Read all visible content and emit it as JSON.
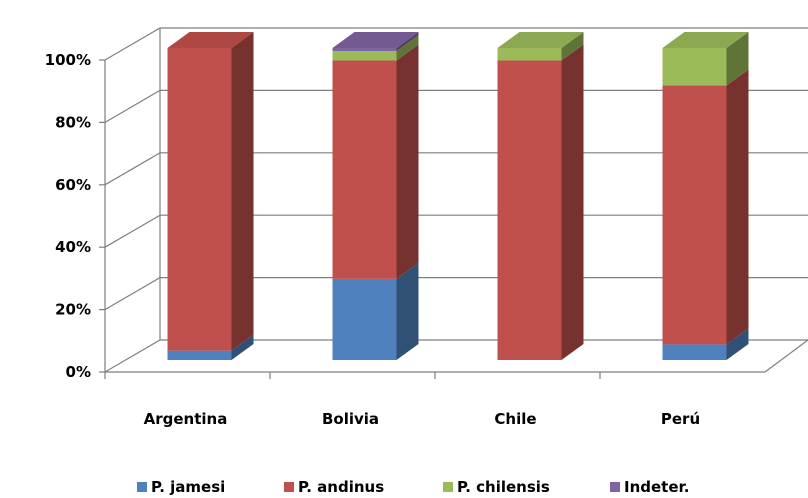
{
  "chart_data": {
    "type": "bar",
    "stacked": true,
    "three_d": true,
    "percent_stacked": true,
    "categories": [
      "Argentina",
      "Bolivia",
      "Chile",
      "Perú"
    ],
    "series": [
      {
        "name": "P. jamesi",
        "color": "#4f81bd",
        "values": [
          3,
          26,
          0,
          5
        ]
      },
      {
        "name": "P. andinus",
        "color": "#c0504d",
        "values": [
          97,
          70,
          96,
          83
        ]
      },
      {
        "name": "P. chilensis",
        "color": "#9bbb59",
        "values": [
          0,
          3,
          4,
          12
        ]
      },
      {
        "name": "Indeter.",
        "color": "#8064a2",
        "values": [
          0,
          1,
          0,
          0
        ]
      }
    ],
    "y_ticks": [
      "0%",
      "20%",
      "40%",
      "60%",
      "80%",
      "100%"
    ],
    "ylim": [
      0,
      100
    ],
    "grid": true,
    "legend_position": "bottom"
  }
}
